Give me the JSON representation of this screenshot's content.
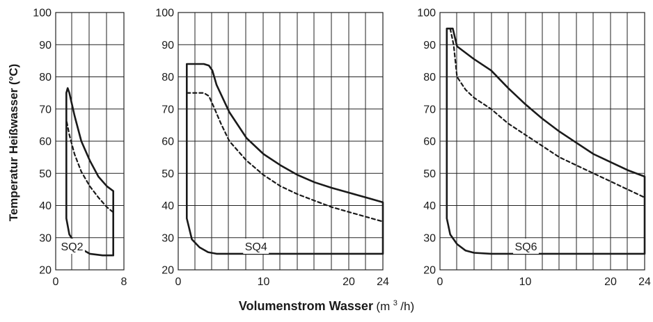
{
  "chart_data": [
    {
      "type": "line",
      "panel_label": "SQ2",
      "xlim": [
        0,
        8
      ],
      "ylim": [
        20,
        100
      ],
      "x_ticks": [
        "0",
        "8"
      ],
      "y_ticks": [
        "20",
        "30",
        "40",
        "50",
        "60",
        "70",
        "80",
        "90",
        "100"
      ],
      "grid": true,
      "series": [
        {
          "style": "solid",
          "values": [
            [
              1.25,
              36
            ],
            [
              1.25,
              75
            ],
            [
              1.4,
              76.5
            ],
            [
              1.6,
              75
            ],
            [
              2.2,
              68
            ],
            [
              3.0,
              60
            ],
            [
              4.0,
              54
            ],
            [
              5.0,
              49
            ],
            [
              6.0,
              46
            ],
            [
              6.75,
              44.5
            ],
            [
              6.75,
              24.5
            ],
            [
              5.5,
              24.5
            ],
            [
              4.0,
              25
            ],
            [
              3.0,
              26.5
            ],
            [
              2.2,
              28.5
            ],
            [
              1.6,
              31
            ],
            [
              1.25,
              36
            ]
          ]
        },
        {
          "style": "dashed",
          "values": [
            [
              1.3,
              66
            ],
            [
              1.6,
              62
            ],
            [
              2.2,
              56
            ],
            [
              3.0,
              50.5
            ],
            [
              4.0,
              46
            ],
            [
              5.0,
              42.5
            ],
            [
              6.0,
              39.5
            ],
            [
              6.7,
              38
            ]
          ]
        }
      ]
    },
    {
      "type": "line",
      "panel_label": "SQ4",
      "xlim": [
        0,
        24
      ],
      "ylim": [
        20,
        100
      ],
      "x_ticks": [
        "0",
        "10",
        "20",
        "24"
      ],
      "y_ticks": [
        "20",
        "30",
        "40",
        "50",
        "60",
        "70",
        "80",
        "90",
        "100"
      ],
      "grid": true,
      "series": [
        {
          "style": "solid",
          "values": [
            [
              1.0,
              36
            ],
            [
              1.0,
              84
            ],
            [
              3.0,
              84
            ],
            [
              3.6,
              83.5
            ],
            [
              4.0,
              82
            ],
            [
              4.5,
              77.5
            ],
            [
              6.0,
              69
            ],
            [
              8.0,
              61
            ],
            [
              10.0,
              56
            ],
            [
              12.0,
              52.5
            ],
            [
              14.0,
              49.5
            ],
            [
              16.0,
              47.2
            ],
            [
              18.0,
              45.5
            ],
            [
              20.0,
              44
            ],
            [
              22.0,
              42.5
            ],
            [
              24.0,
              41
            ],
            [
              24.0,
              25
            ],
            [
              4.5,
              25
            ],
            [
              3.5,
              25.5
            ],
            [
              2.5,
              27
            ],
            [
              1.6,
              29.5
            ],
            [
              1.0,
              36
            ]
          ]
        },
        {
          "style": "dashed",
          "values": [
            [
              1.0,
              75
            ],
            [
              3.0,
              75
            ],
            [
              3.6,
              74
            ],
            [
              4.2,
              70.5
            ],
            [
              5.0,
              65.5
            ],
            [
              6.0,
              60
            ],
            [
              8.0,
              54
            ],
            [
              10.0,
              49.5
            ],
            [
              12.0,
              46
            ],
            [
              14.0,
              43.5
            ],
            [
              16.0,
              41.5
            ],
            [
              18.0,
              39.5
            ],
            [
              20.0,
              38
            ],
            [
              22.0,
              36.5
            ],
            [
              24.0,
              35
            ]
          ]
        }
      ]
    },
    {
      "type": "line",
      "panel_label": "SQ6",
      "xlim": [
        0,
        24
      ],
      "ylim": [
        20,
        100
      ],
      "x_ticks": [
        "0",
        "10",
        "20",
        "24"
      ],
      "y_ticks": [
        "20",
        "30",
        "40",
        "50",
        "60",
        "70",
        "80",
        "90",
        "100"
      ],
      "grid": true,
      "series": [
        {
          "style": "solid",
          "values": [
            [
              0.8,
              36
            ],
            [
              0.8,
              95
            ],
            [
              1.5,
              95
            ],
            [
              2.0,
              89.5
            ],
            [
              4.0,
              85.5
            ],
            [
              6.0,
              82
            ],
            [
              8.0,
              76.5
            ],
            [
              10.0,
              71.5
            ],
            [
              12.0,
              67
            ],
            [
              14.0,
              63
            ],
            [
              16.0,
              59.5
            ],
            [
              18.0,
              56
            ],
            [
              20.0,
              53.5
            ],
            [
              22.0,
              51
            ],
            [
              24.0,
              49
            ],
            [
              24.0,
              25
            ],
            [
              6.0,
              25
            ],
            [
              4.0,
              25.3
            ],
            [
              3.0,
              26
            ],
            [
              2.0,
              28
            ],
            [
              1.2,
              31
            ],
            [
              0.8,
              36
            ]
          ]
        },
        {
          "style": "dashed",
          "values": [
            [
              1.2,
              95
            ],
            [
              1.6,
              90
            ],
            [
              2.0,
              80
            ],
            [
              3.0,
              76
            ],
            [
              4.0,
              73.5
            ],
            [
              6.0,
              70
            ],
            [
              8.0,
              65.5
            ],
            [
              10.0,
              62
            ],
            [
              12.0,
              58.5
            ],
            [
              14.0,
              55
            ],
            [
              16.0,
              52.5
            ],
            [
              18.0,
              50
            ],
            [
              20.0,
              47.5
            ],
            [
              22.0,
              45
            ],
            [
              24.0,
              42.5
            ]
          ]
        }
      ]
    }
  ],
  "ylabel": "Temperatur Heißwasser (°C)",
  "xlabel": {
    "bold": "Volumenstrom Wasser",
    "unit_prefix": "(m",
    "unit_sup": "3",
    "unit_suffix": "/h)"
  }
}
